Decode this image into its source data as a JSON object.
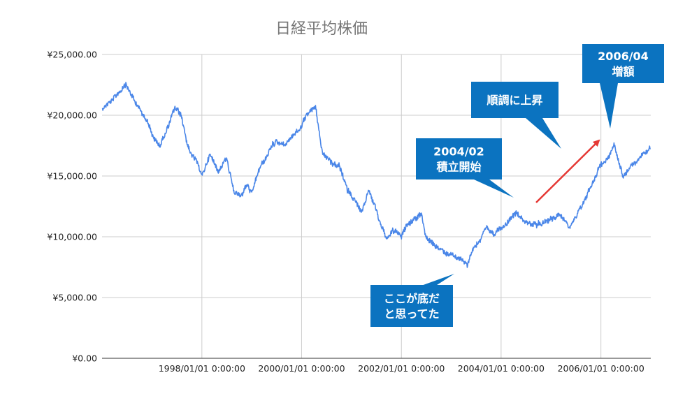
{
  "chart_data": {
    "type": "line",
    "title": "日経平均株価",
    "xlabel": "",
    "ylabel": "",
    "ylim": [
      0,
      25000
    ],
    "xlim": [
      "1996-01-01",
      "2007-01-01"
    ],
    "y_ticks": [
      0,
      5000,
      10000,
      15000,
      20000,
      25000
    ],
    "y_tick_labels": [
      "¥0.00",
      "¥5,000.00",
      "¥10,000.00",
      "¥15,000.00",
      "¥20,000.00",
      "¥25,000.00"
    ],
    "x_ticks": [
      "1998-01-01",
      "2000-01-01",
      "2002-01-01",
      "2004-01-01",
      "2006-01-01"
    ],
    "x_tick_labels": [
      "1998/01/01 0:00:00",
      "2000/01/01 0:00:00",
      "2002/01/01 0:00:00",
      "2004/01/01 0:00:00",
      "2006/01/01 0:00:00"
    ],
    "grid": true,
    "legend": "none",
    "series": [
      {
        "color": "#4a86e8",
        "x": [
          "1996-01-04",
          "1996-04-01",
          "1996-06-26",
          "1996-09-01",
          "1996-12-01",
          "1997-01-15",
          "1997-03-01",
          "1997-06-15",
          "1997-08-01",
          "1997-10-01",
          "1997-11-15",
          "1998-01-01",
          "1998-03-01",
          "1998-05-01",
          "1998-07-01",
          "1998-08-20",
          "1998-10-09",
          "1998-12-01",
          "1999-01-01",
          "1999-03-01",
          "1999-05-01",
          "1999-07-01",
          "1999-09-01",
          "1999-11-01",
          "2000-01-01",
          "2000-02-15",
          "2000-04-12",
          "2000-06-01",
          "2000-08-01",
          "2000-10-01",
          "2000-12-01",
          "2001-01-01",
          "2001-03-14",
          "2001-05-07",
          "2001-07-01",
          "2001-09-12",
          "2001-11-01",
          "2002-01-01",
          "2002-02-06",
          "2002-05-27",
          "2002-07-01",
          "2002-09-01",
          "2002-11-01",
          "2003-01-01",
          "2003-03-01",
          "2003-04-28",
          "2003-06-01",
          "2003-08-01",
          "2003-09-15",
          "2003-11-01",
          "2004-01-01",
          "2004-02-01",
          "2004-04-23",
          "2004-06-01",
          "2004-08-01",
          "2004-10-01",
          "2004-12-01",
          "2005-01-01",
          "2005-03-01",
          "2005-05-17",
          "2005-07-01",
          "2005-09-01",
          "2005-11-01",
          "2006-01-01",
          "2006-02-01",
          "2006-04-07",
          "2006-06-14",
          "2006-08-01",
          "2006-10-01",
          "2006-12-29"
        ],
        "values": [
          20600,
          21500,
          22500,
          21000,
          19500,
          18000,
          17500,
          20500,
          20000,
          17000,
          16500,
          15000,
          16800,
          15500,
          16500,
          14000,
          13200,
          14200,
          13500,
          15700,
          16800,
          18000,
          17500,
          18400,
          19000,
          20200,
          20800,
          16800,
          16200,
          15800,
          13800,
          13500,
          12000,
          14000,
          12200,
          9800,
          10500,
          10000,
          11000,
          11800,
          10000,
          9300,
          8700,
          8600,
          8200,
          7700,
          8700,
          9800,
          10700,
          10300,
          10600,
          11000,
          12000,
          11500,
          11000,
          11100,
          11300,
          11500,
          11800,
          11000,
          11700,
          13000,
          14500,
          16000,
          16200,
          17500,
          15000,
          15800,
          16400,
          17200
        ]
      }
    ],
    "annotations": [
      {
        "lines": [
          "ここが底だ",
          "と思ってた"
        ]
      },
      {
        "lines": [
          "2004/02",
          "積立開始"
        ]
      },
      {
        "lines": [
          "順調に上昇"
        ]
      },
      {
        "lines": [
          "2006/04",
          "増額"
        ]
      }
    ],
    "arrow_color": "#e53935",
    "callout_color": "#0b73c0",
    "grid_color": "#cccccc",
    "axis_color": "#333333"
  }
}
